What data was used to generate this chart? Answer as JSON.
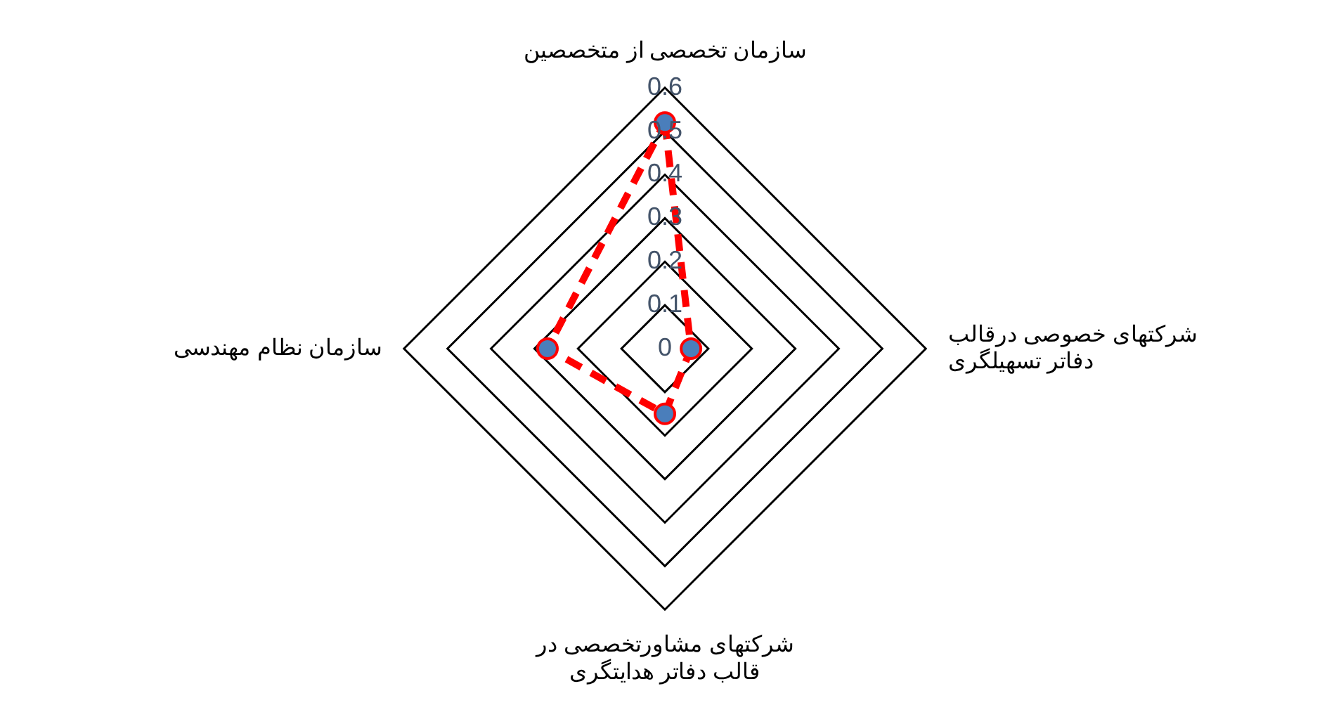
{
  "chart_data": {
    "type": "radar",
    "categories": [
      "سازمان تخصصی از متخصصین",
      "شرکتهای خصوصی درقالب دفاتر تسهیلگری",
      "شرکتهای مشاورتخصصی در قالب دفاتر هدایتگری",
      "سازمان نظام مهندسی"
    ],
    "series": [
      {
        "color": "#ff0000",
        "values": [
          0.52,
          0.06,
          0.15,
          0.27
        ]
      }
    ],
    "ylim": [
      0,
      0.6
    ],
    "yticks": [
      0,
      0.1,
      0.2,
      0.3,
      0.4,
      0.5,
      0.6
    ],
    "grid": true,
    "legend": false,
    "marker": "circle",
    "line_style": "dashed"
  }
}
